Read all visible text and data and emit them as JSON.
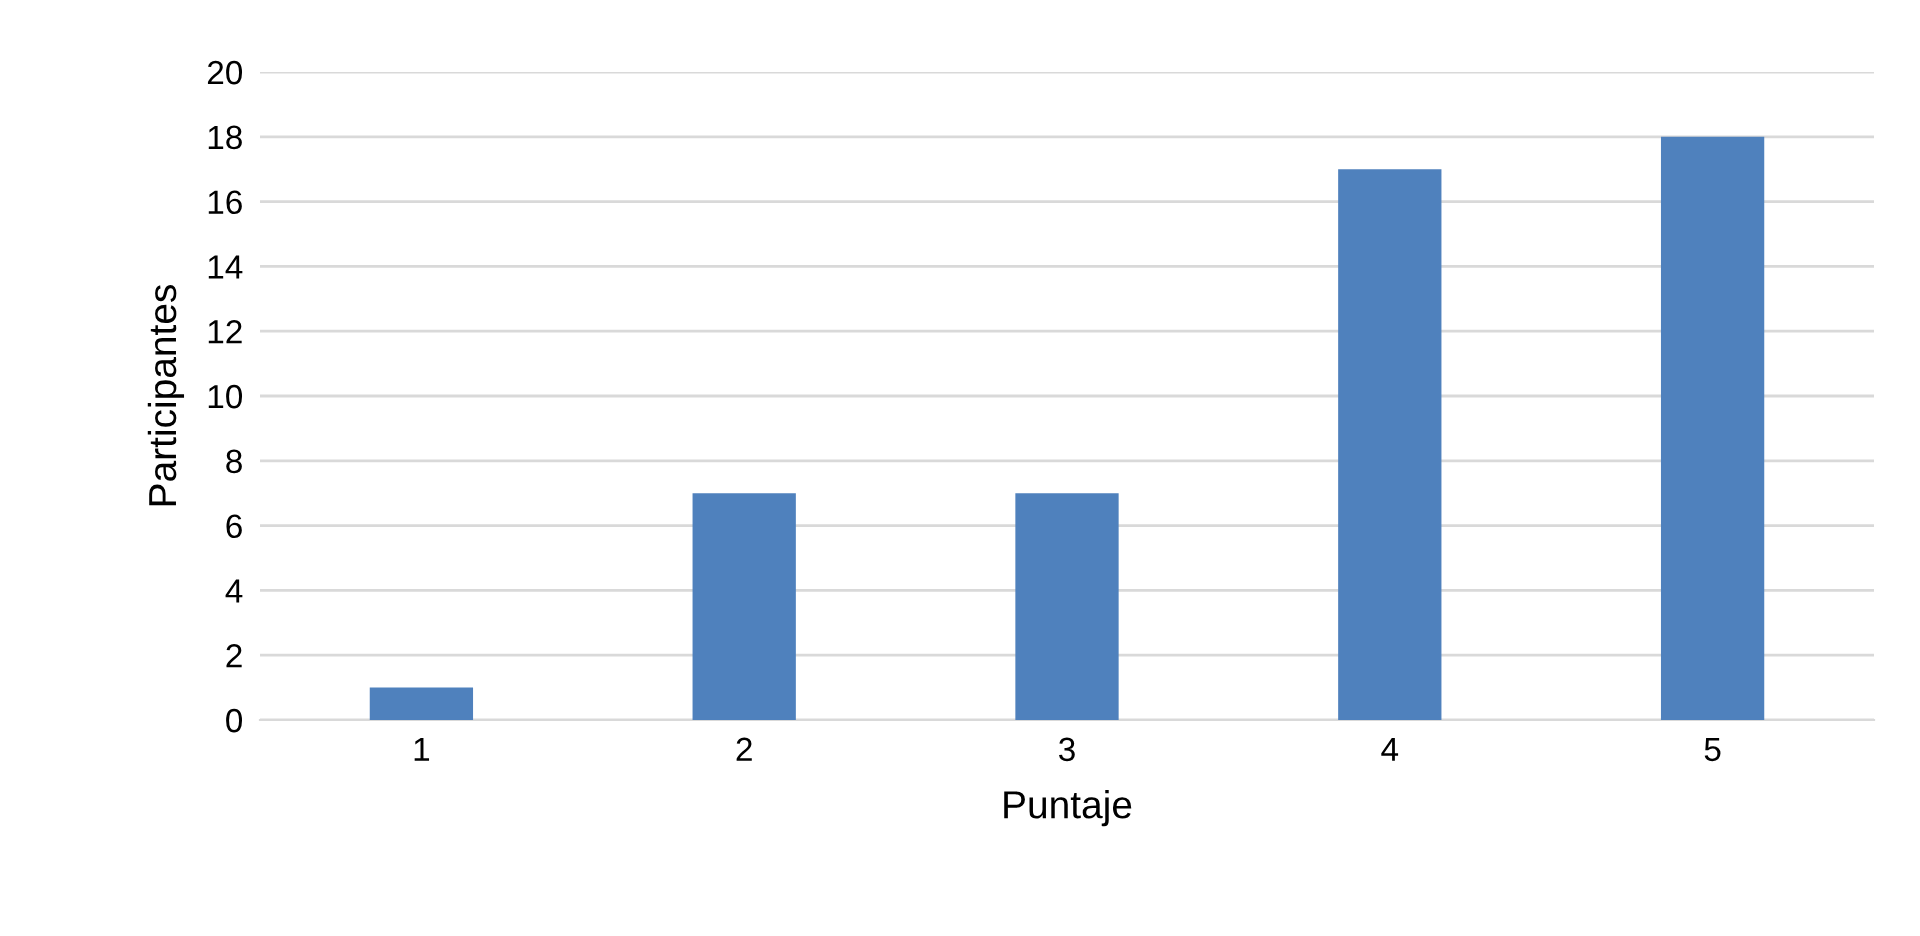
{
  "chart_data": {
    "type": "bar",
    "xlabel": "Puntaje",
    "ylabel": "Participantes",
    "categories": [
      "1",
      "2",
      "3",
      "4",
      "5"
    ],
    "values": [
      1,
      7,
      7,
      17,
      18
    ],
    "color": "#4f81bd",
    "ylim": [
      0,
      20
    ],
    "yticks": [
      0,
      2,
      4,
      6,
      8,
      10,
      12,
      14,
      16,
      18,
      20
    ],
    "grid": "y",
    "legend": false
  }
}
